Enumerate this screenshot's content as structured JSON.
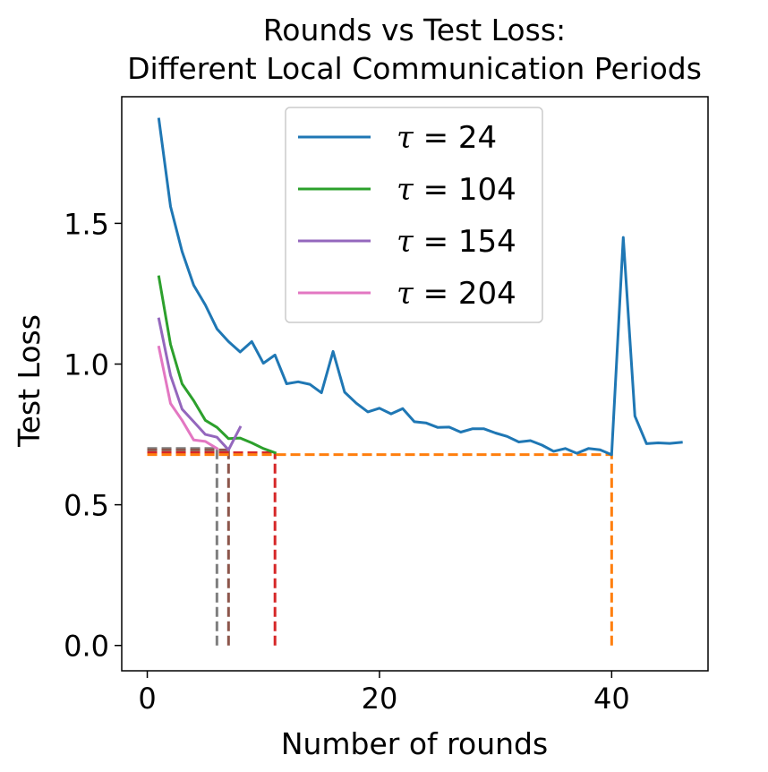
{
  "chart_data": {
    "type": "line",
    "title_lines": [
      "Rounds vs Test Loss:",
      "Different Local Communication Periods"
    ],
    "xlabel": "Number of rounds",
    "ylabel": "Test Loss",
    "xlim": [
      -2.2,
      48.3
    ],
    "ylim": [
      -0.09,
      1.95
    ],
    "x_ticks": [
      0,
      20,
      40
    ],
    "x_tick_labels": [
      "0",
      "20",
      "40"
    ],
    "y_ticks": [
      0.0,
      0.5,
      1.0,
      1.5
    ],
    "y_tick_labels": [
      "0.0",
      "0.5",
      "1.0",
      "1.5"
    ],
    "grid": false,
    "legend_position": "upper center",
    "series": [
      {
        "name": "τ = 24",
        "symbol": "τ",
        "value_label": "24",
        "color": "#1f77b4",
        "x": [
          1,
          2,
          3,
          4,
          5,
          6,
          7,
          8,
          9,
          10,
          11,
          12,
          13,
          14,
          15,
          16,
          17,
          18,
          19,
          20,
          21,
          22,
          23,
          24,
          25,
          26,
          27,
          28,
          29,
          30,
          31,
          32,
          33,
          34,
          35,
          36,
          37,
          38,
          39,
          40,
          41,
          42,
          43,
          44,
          45,
          46
        ],
        "values": [
          1.87,
          1.56,
          1.4,
          1.28,
          1.21,
          1.125,
          1.08,
          1.043,
          1.08,
          1.003,
          1.032,
          0.93,
          0.937,
          0.928,
          0.898,
          1.045,
          0.9,
          0.861,
          0.83,
          0.843,
          0.823,
          0.842,
          0.795,
          0.791,
          0.775,
          0.776,
          0.758,
          0.77,
          0.77,
          0.755,
          0.743,
          0.723,
          0.728,
          0.712,
          0.69,
          0.7,
          0.683,
          0.7,
          0.695,
          0.678,
          1.45,
          0.815,
          0.717,
          0.72,
          0.718,
          0.722
        ]
      },
      {
        "name": "τ = 104",
        "symbol": "τ",
        "value_label": "104",
        "color": "#2ca02c",
        "x": [
          1,
          2,
          3,
          4,
          5,
          6,
          7,
          8,
          9,
          10,
          11
        ],
        "values": [
          1.31,
          1.07,
          0.93,
          0.87,
          0.8,
          0.775,
          0.735,
          0.737,
          0.72,
          0.7,
          0.685
        ]
      },
      {
        "name": "τ = 154",
        "symbol": "τ",
        "value_label": "154",
        "color": "#9467bd",
        "x": [
          1,
          2,
          3,
          4,
          5,
          6,
          7,
          8
        ],
        "values": [
          1.16,
          0.96,
          0.84,
          0.795,
          0.75,
          0.74,
          0.695,
          0.775
        ]
      },
      {
        "name": "τ = 204",
        "symbol": "τ",
        "value_label": "204",
        "color": "#e377c2",
        "x": [
          1,
          2,
          3,
          4,
          5,
          6
        ],
        "values": [
          1.06,
          0.86,
          0.8,
          0.73,
          0.725,
          0.7
        ]
      }
    ],
    "reference_lines": [
      {
        "color": "#7f7f7f",
        "y": 0.7,
        "x_min": 0,
        "x_max": 6,
        "x": 6
      },
      {
        "color": "#8c564b",
        "y": 0.695,
        "x_min": 0,
        "x_max": 7,
        "x": 7
      },
      {
        "color": "#d62728",
        "y": 0.685,
        "x_min": 0,
        "x_max": 11,
        "x": 11
      },
      {
        "color": "#ff7f0e",
        "y": 0.678,
        "x_min": 0,
        "x_max": 40,
        "x": 40
      }
    ]
  }
}
